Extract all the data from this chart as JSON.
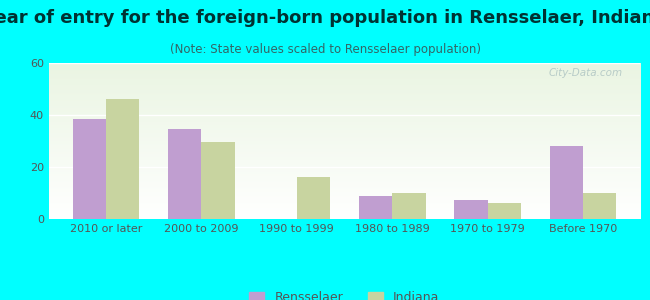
{
  "title": "Year of entry for the foreign-born population in Rensselaer, Indiana",
  "subtitle": "(Note: State values scaled to Rensselaer population)",
  "categories": [
    "2010 or later",
    "2000 to 2009",
    "1990 to 1999",
    "1980 to 1989",
    "1970 to 1979",
    "Before 1970"
  ],
  "rensselaer_values": [
    38.5,
    34.5,
    0,
    9,
    7.5,
    28
  ],
  "indiana_values": [
    46,
    29.5,
    16,
    10,
    6,
    10
  ],
  "rensselaer_color": "#c09ed0",
  "indiana_color": "#c8d4a0",
  "background_color": "#00ffff",
  "plot_bg_top": "#eaf5e2",
  "plot_bg_bottom": "#ffffff",
  "ylim": [
    0,
    60
  ],
  "yticks": [
    0,
    20,
    40,
    60
  ],
  "watermark": "City-Data.com",
  "legend_rensselaer": "Rensselaer",
  "legend_indiana": "Indiana",
  "title_fontsize": 13,
  "subtitle_fontsize": 8.5,
  "tick_fontsize": 8,
  "bar_width": 0.35,
  "title_color": "#003333",
  "subtitle_color": "#336666",
  "tick_color": "#555555",
  "watermark_color": "#b8ccc8"
}
